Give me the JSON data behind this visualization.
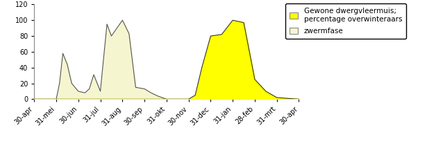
{
  "x_labels": [
    "30-apr",
    "31-mei",
    "30-jun",
    "31-jul",
    "31-aug",
    "30-sep",
    "31-okt",
    "30-nov",
    "31-dec",
    "31-jan",
    "28-feb",
    "31-mrt",
    "30-apr"
  ],
  "zwermfase_x": [
    0,
    1.0,
    1.15,
    1.3,
    1.5,
    1.7,
    2.0,
    2.3,
    2.5,
    2.7,
    3.0,
    3.3,
    3.5,
    4.0,
    4.3,
    4.6,
    5.0,
    5.3,
    5.6,
    6.0,
    7.0,
    8.0,
    9.0,
    10.0,
    11.0,
    12.0
  ],
  "zwermfase_y": [
    0,
    0,
    20,
    58,
    44,
    20,
    10,
    8,
    13,
    31,
    10,
    95,
    80,
    100,
    83,
    15,
    13,
    8,
    4,
    0,
    0,
    0,
    0,
    0,
    0,
    0
  ],
  "gewone_x": [
    0,
    6.0,
    6.5,
    7.0,
    7.3,
    7.6,
    8.0,
    8.5,
    9.0,
    9.5,
    10.0,
    10.5,
    11.0,
    12.0
  ],
  "gewone_y": [
    0,
    0,
    0,
    0,
    5,
    40,
    80,
    82,
    100,
    97,
    25,
    10,
    2,
    0
  ],
  "ylim": [
    0,
    120
  ],
  "yticks": [
    0,
    20,
    40,
    60,
    80,
    100,
    120
  ],
  "zwermfase_color": "#f5f5d0",
  "zwermfase_edge": "#555555",
  "gewone_color": "#ffff00",
  "gewone_edge": "#333333",
  "legend_label1": "Gewone dwergvleermuis;\npercentage overwinteraars",
  "legend_label2": "zwermfase",
  "background_color": "#ffffff"
}
